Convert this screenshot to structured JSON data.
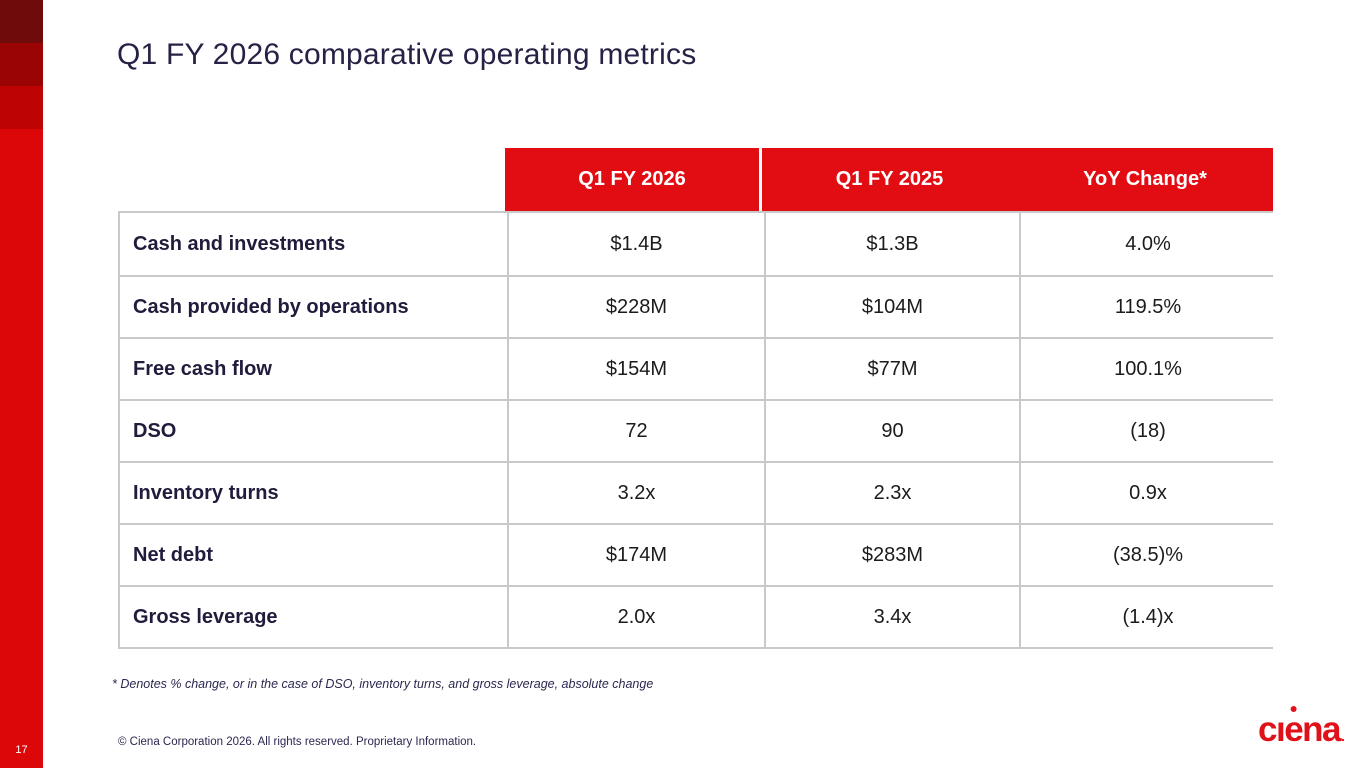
{
  "slide": {
    "title": "Q1 FY 2026 comparative operating metrics",
    "page_number": "17",
    "footnote": "* Denotes % change, or in the case of DSO, inventory turns, and gross leverage, absolute change",
    "copyright": "© Ciena Corporation 2026. All rights reserved. Proprietary Information.",
    "logo": {
      "brand": "ciena",
      "c": "c",
      "i": "ı",
      "e": "e",
      "na": "na",
      "period": "."
    }
  },
  "table": {
    "columns": [
      "Q1 FY 2026",
      "Q1 FY 2025",
      "YoY Change*"
    ],
    "rows": [
      {
        "label": "Cash and investments",
        "values": [
          "$1.4B",
          "$1.3B",
          "4.0%"
        ]
      },
      {
        "label": "Cash provided by operations",
        "values": [
          "$228M",
          "$104M",
          "119.5%"
        ]
      },
      {
        "label": "Free cash flow",
        "values": [
          "$154M",
          "$77M",
          "100.1%"
        ]
      },
      {
        "label": "DSO",
        "values": [
          "72",
          "90",
          "(18)"
        ]
      },
      {
        "label": "Inventory turns",
        "values": [
          "3.2x",
          "2.3x",
          "0.9x"
        ]
      },
      {
        "label": "Net debt",
        "values": [
          "$174M",
          "$283M",
          "(38.5)%"
        ]
      },
      {
        "label": "Gross leverage",
        "values": [
          "2.0x",
          "3.4x",
          "(1.4)x"
        ]
      }
    ]
  },
  "colors": {
    "header_red": "#e20d13",
    "accent_bar_red": "#dc0709",
    "accent_square_dark": "#700b0b",
    "accent_square_mid": "#9b0404",
    "accent_square_light": "#bd0303",
    "title_navy": "#252245",
    "label_navy": "#201c3c",
    "value_black": "#1b1b1b",
    "grid_gray": "#c9c9c9",
    "logo_red": "#e01119"
  }
}
